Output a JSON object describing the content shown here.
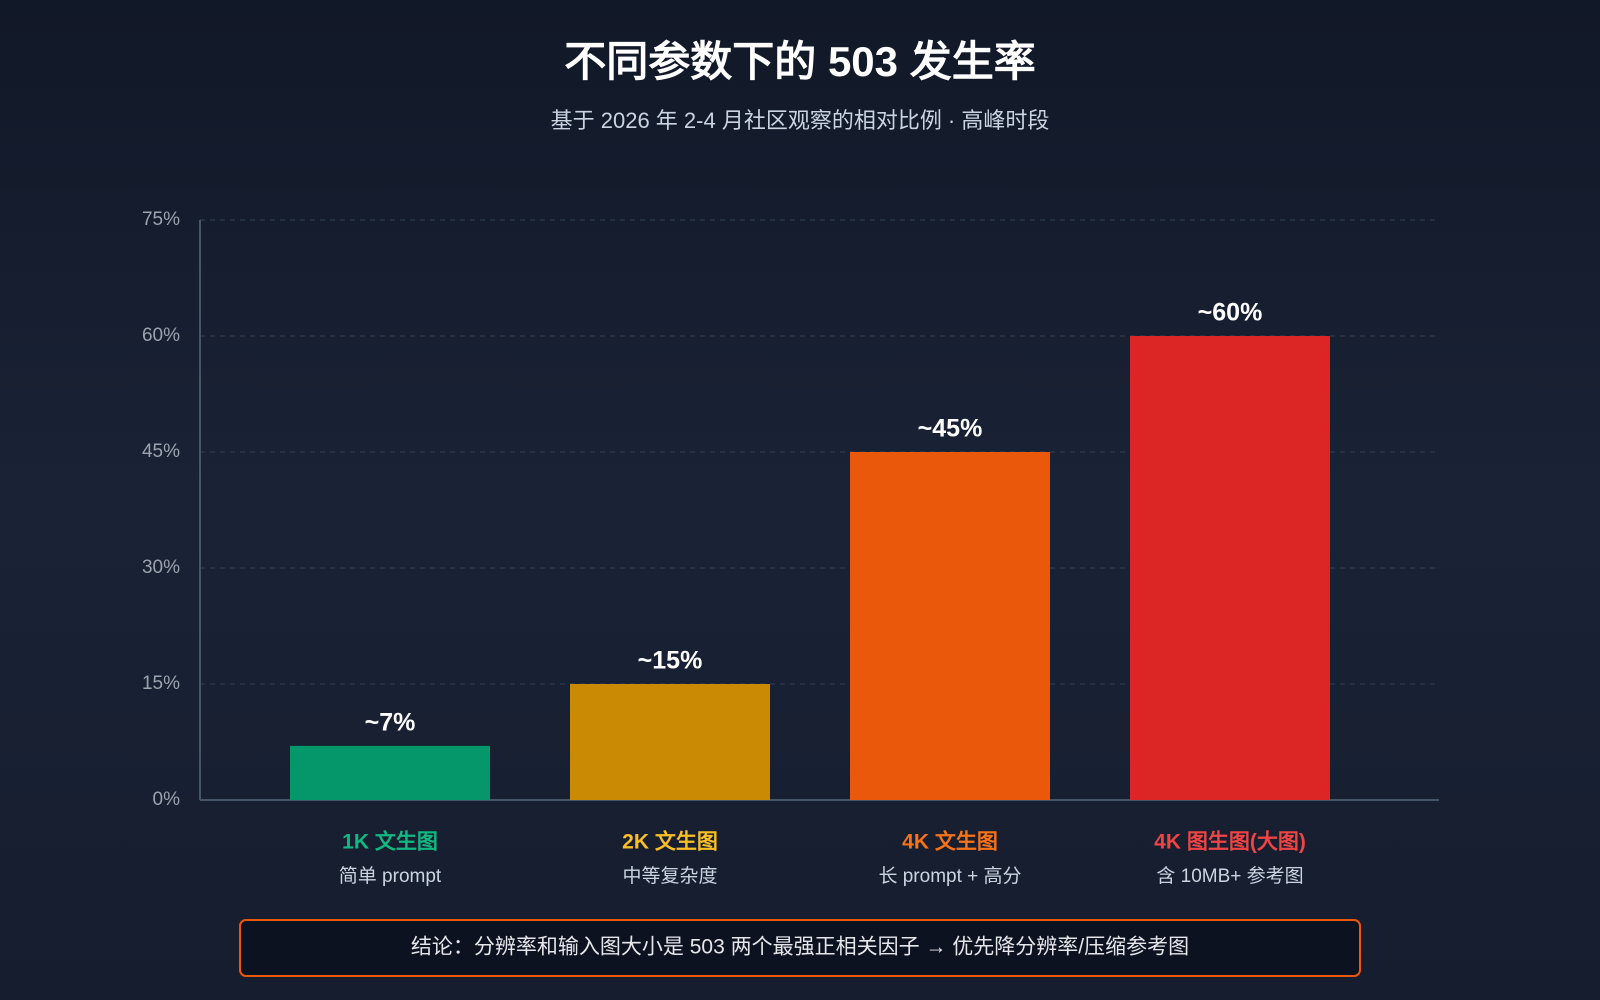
{
  "chart_data": {
    "type": "bar",
    "title": "不同参数下的 503 发生率",
    "subtitle": "基于 2026 年 2-4 月社区观察的相对比例 · 高峰时段",
    "categories": [
      "1K 文生图",
      "2K 文生图",
      "4K 文生图",
      "4K 图生图(大图)"
    ],
    "category_notes": [
      "简单 prompt",
      "中等复杂度",
      "长 prompt + 高分",
      "含 10MB+ 参考图"
    ],
    "category_colors": [
      "#10b981",
      "#fbbf24",
      "#f97316",
      "#ef4444"
    ],
    "values": [
      7,
      15,
      45,
      60
    ],
    "value_labels": [
      "~7%",
      "~15%",
      "~45%",
      "~60%"
    ],
    "colors": [
      "#059669",
      "#ca8a04",
      "#ea580c",
      "#dc2626"
    ],
    "ylim": [
      0,
      75
    ],
    "yticks": [
      {
        "value": 0,
        "label": "0%"
      },
      {
        "value": 15,
        "label": "15%"
      },
      {
        "value": 30,
        "label": "30%"
      },
      {
        "value": 45,
        "label": "45%"
      },
      {
        "value": 60,
        "label": "60%"
      },
      {
        "value": 75,
        "label": "75%"
      }
    ],
    "grid": true,
    "conclusion": "结论：分辨率和输入图大小是 503 两个最强正相关因子 → 优先降分辨率/压缩参考图"
  }
}
